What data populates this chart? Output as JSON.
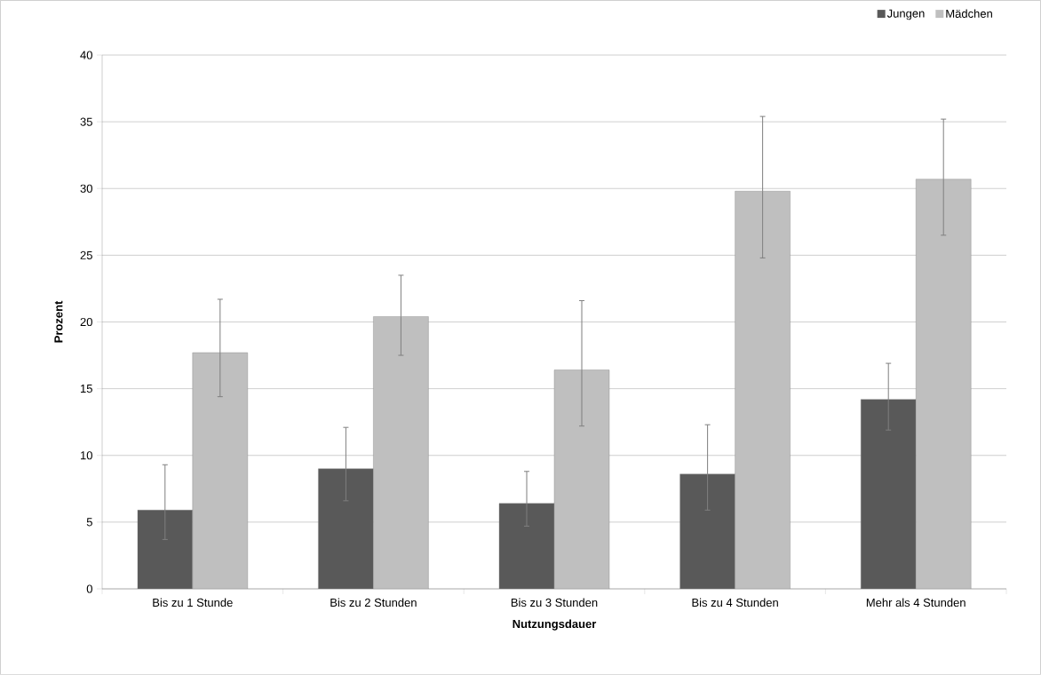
{
  "chart_data": {
    "type": "bar",
    "xlabel": "Nutzungsdauer",
    "ylabel": "Prozent",
    "categories": [
      "Bis zu 1 Stunde",
      "Bis zu 2 Stunden",
      "Bis zu 3 Stunden",
      "Bis zu 4 Stunden",
      "Mehr als 4 Stunden"
    ],
    "series": [
      {
        "name": "Jungen",
        "color": "#595959",
        "values": [
          5.9,
          9.0,
          6.4,
          8.6,
          14.2
        ],
        "errors": [
          [
            3.7,
            9.3
          ],
          [
            6.6,
            12.1
          ],
          [
            4.7,
            8.8
          ],
          [
            5.9,
            12.3
          ],
          [
            11.9,
            16.9
          ]
        ]
      },
      {
        "name": "Mädchen",
        "color": "#bfbfbf",
        "values": [
          17.7,
          20.4,
          16.4,
          29.8,
          30.7
        ],
        "errors": [
          [
            14.4,
            21.7
          ],
          [
            17.5,
            23.5
          ],
          [
            12.2,
            21.6
          ],
          [
            24.8,
            35.4
          ],
          [
            26.5,
            35.2
          ]
        ]
      }
    ],
    "ylim": [
      0,
      40
    ],
    "yticks": [
      0,
      5,
      10,
      15,
      20,
      25,
      30,
      35,
      40
    ],
    "grid": "y",
    "legend": "top right"
  }
}
